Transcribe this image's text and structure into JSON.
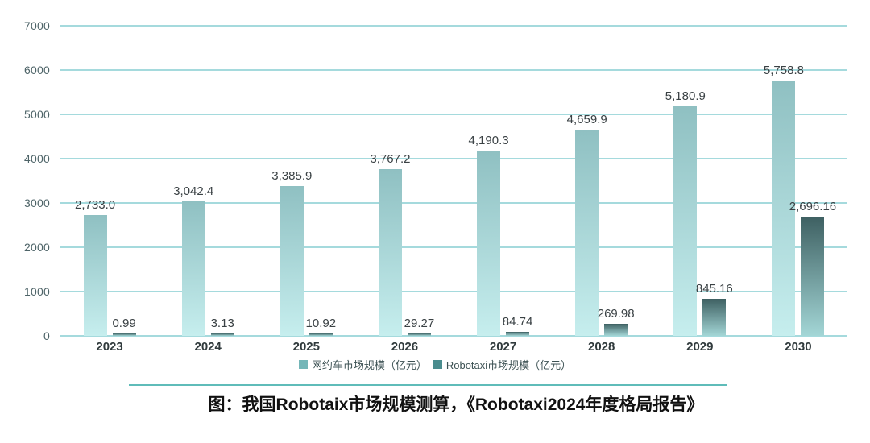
{
  "chart_data": {
    "type": "bar",
    "title": "",
    "categories": [
      "2023",
      "2024",
      "2025",
      "2026",
      "2027",
      "2028",
      "2029",
      "2030"
    ],
    "series": [
      {
        "id": "ridehailing",
        "name": "网约车市场规模（亿元）",
        "values": [
          2733.0,
          3042.4,
          3385.9,
          3767.2,
          4190.3,
          4659.9,
          5180.9,
          5758.8
        ],
        "labels": [
          "2,733.0",
          "3,042.4",
          "3,385.9",
          "3,767.2",
          "4,190.3",
          "4,659.9",
          "5,180.9",
          "5,758.8"
        ],
        "gradient_top": "#8fc0c2",
        "gradient_bottom": "#c6eeee",
        "legend_swatch": "#74b6b8"
      },
      {
        "id": "robotaxi",
        "name": "Robotaxi市场规模（亿元）",
        "values": [
          0.99,
          3.13,
          10.92,
          29.27,
          84.74,
          269.98,
          845.16,
          2696.16
        ],
        "labels": [
          "0.99",
          "3.13",
          "10.92",
          "29.27",
          "84.74",
          "269.98",
          "845.16",
          "2,696.16"
        ],
        "gradient_top": "#3e6062",
        "gradient_bottom": "#a3d6d6",
        "legend_swatch": "#4a8c8e"
      }
    ],
    "ylim": [
      0,
      7000
    ],
    "yticks": [
      0,
      1000,
      2000,
      3000,
      4000,
      5000,
      6000,
      7000
    ],
    "grid": true,
    "legend_position": "bottom"
  },
  "caption": "图：我国Robotaix市场规模测算，《Robotaxi2024年度格局报告》",
  "theme": {
    "background": "#ffffff",
    "gridline_color": "#a5dadd",
    "yaxis_label_color": "#4e6468",
    "xaxis_label_color": "#303a3c",
    "data_label_color": "#3a4144",
    "legend_text_color": "#3d5254",
    "divider_color": "#5fbcb9",
    "caption_color": "#111111"
  }
}
